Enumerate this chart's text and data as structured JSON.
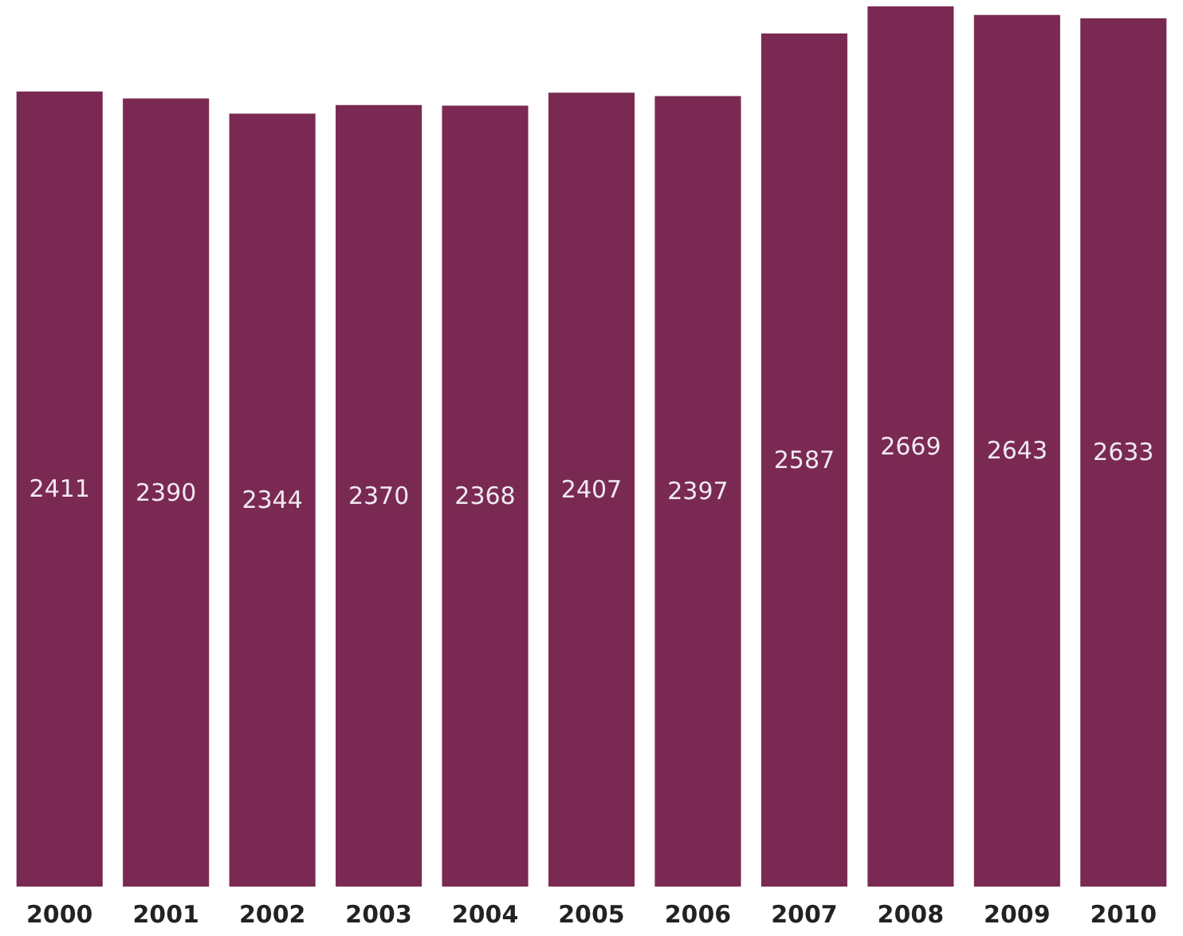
{
  "chart_data": {
    "type": "bar",
    "categories": [
      "2000",
      "2001",
      "2002",
      "2003",
      "2004",
      "2005",
      "2006",
      "2007",
      "2008",
      "2009",
      "2010"
    ],
    "values": [
      2411,
      2390,
      2344,
      2370,
      2368,
      2407,
      2397,
      2587,
      2669,
      2643,
      2633
    ],
    "color": "#7a2a52",
    "data_labels": true
  }
}
